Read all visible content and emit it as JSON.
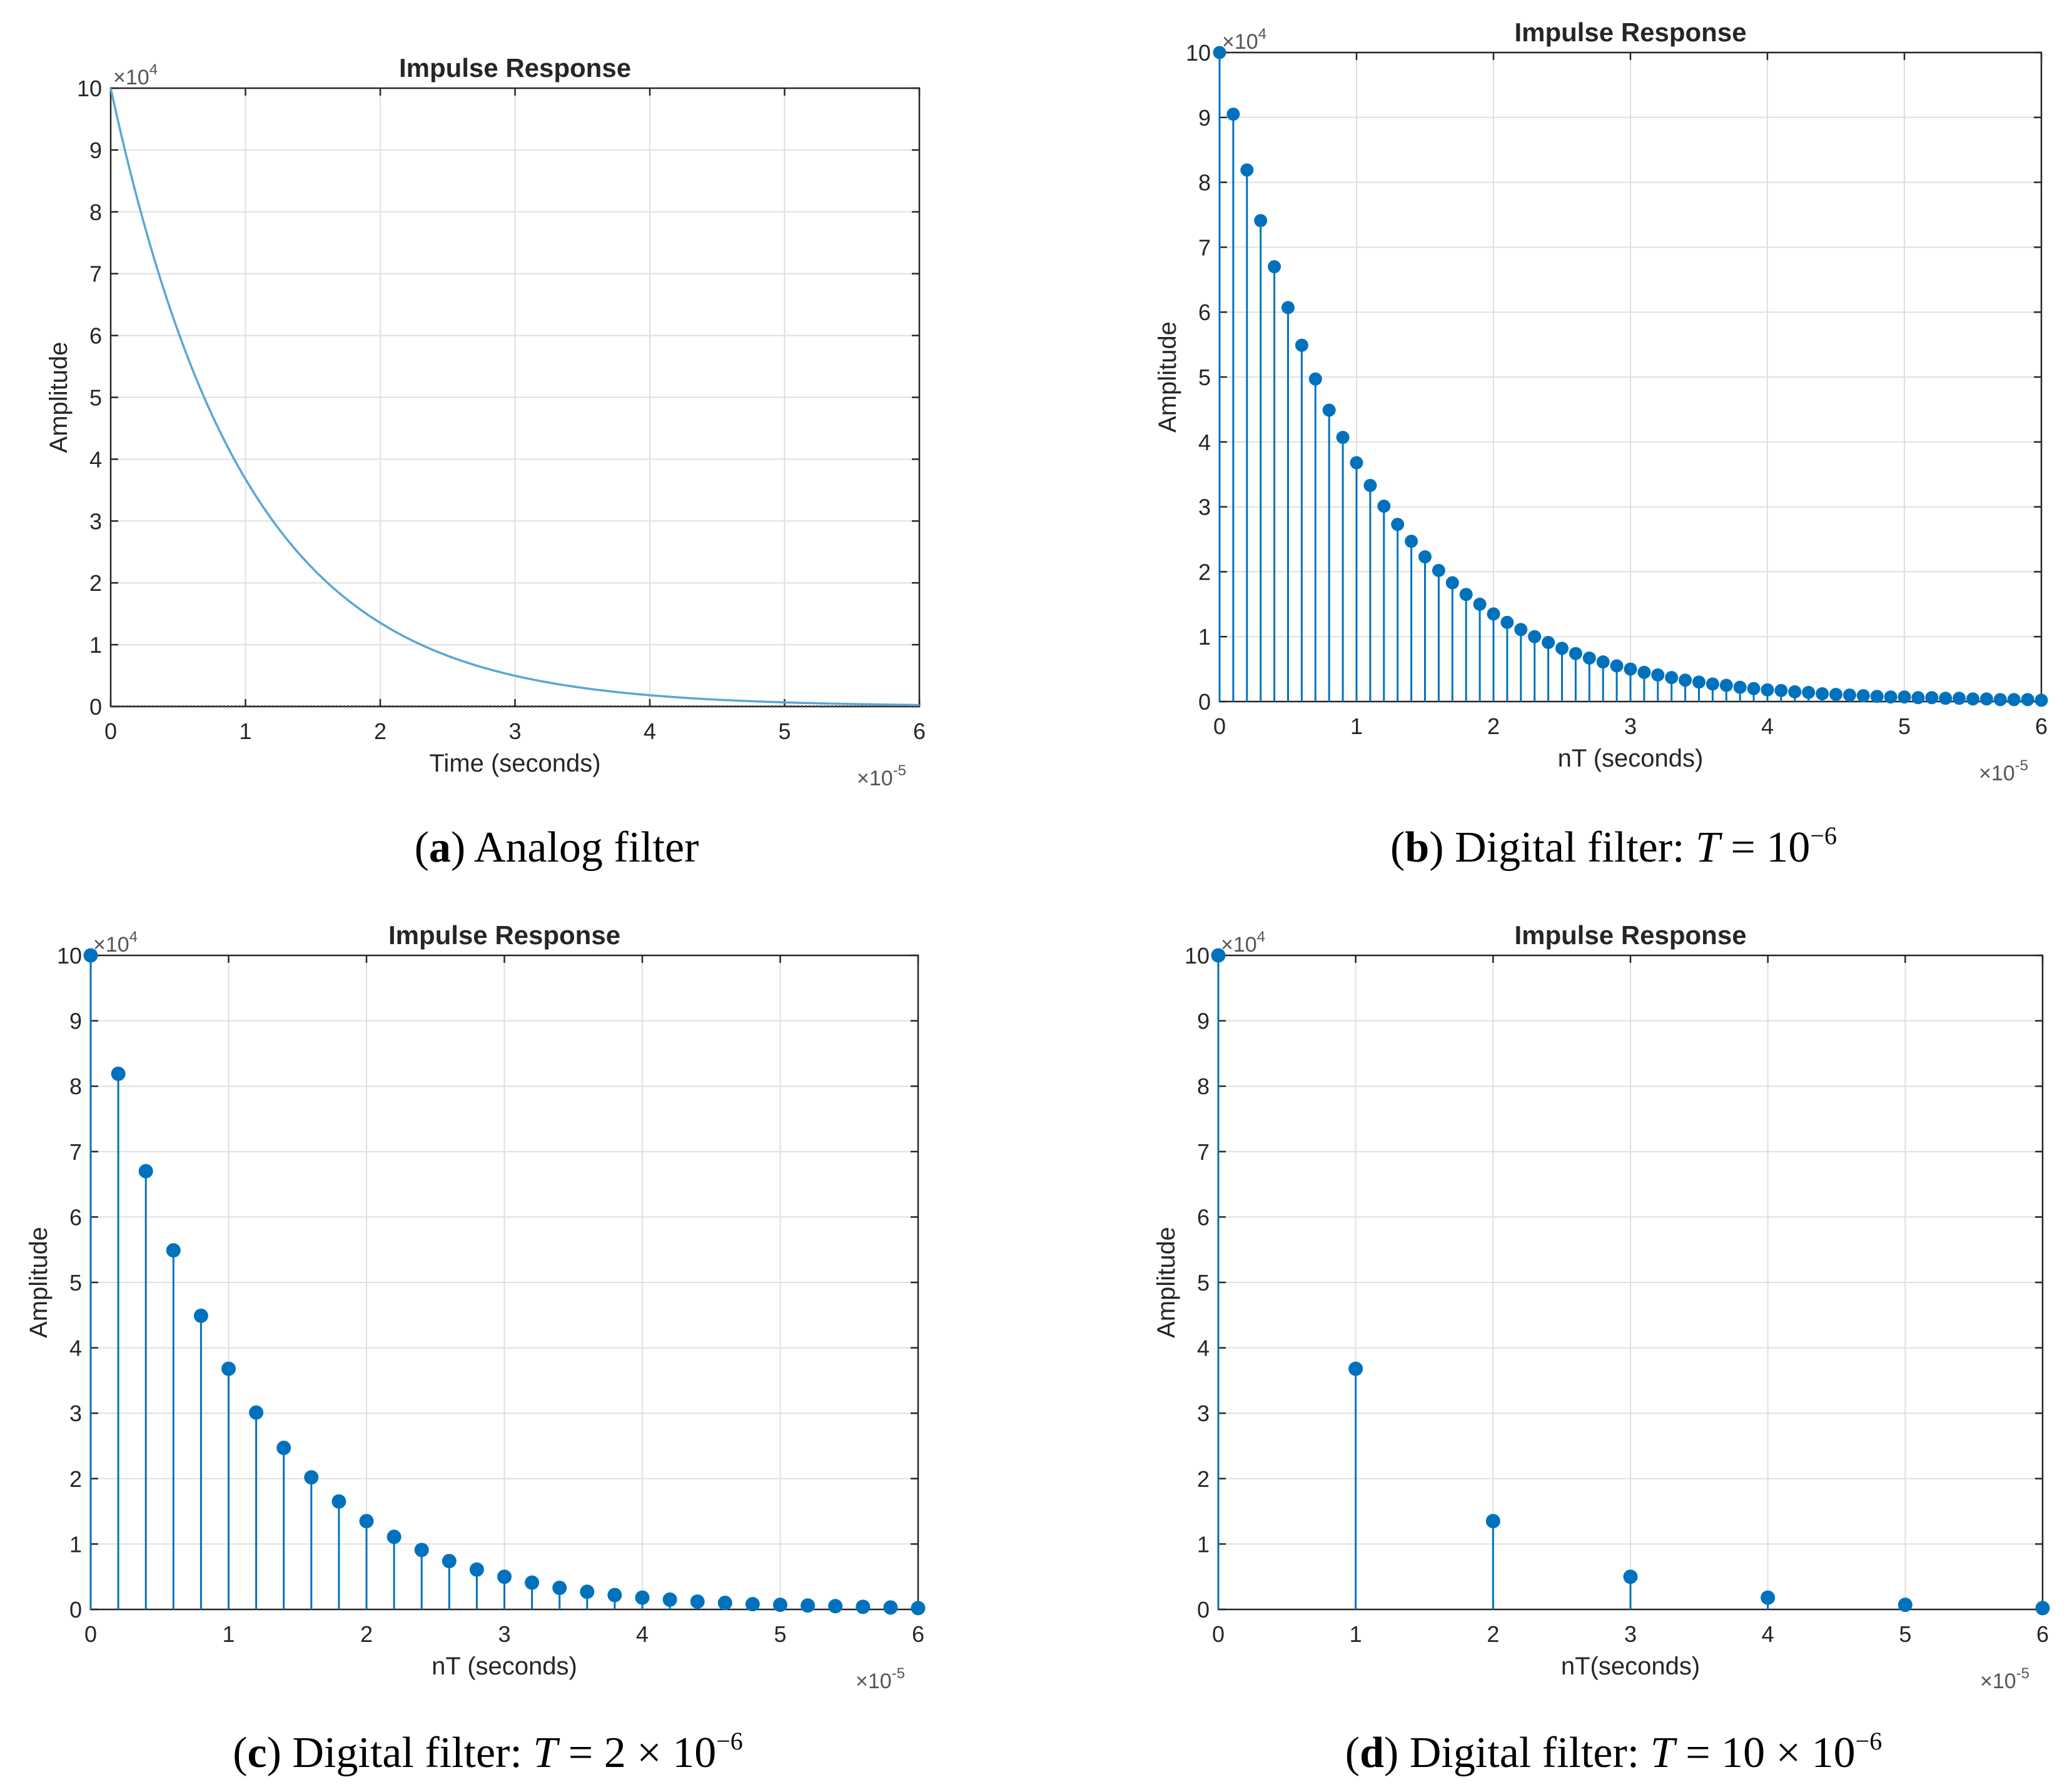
{
  "colors": {
    "analog_line": "#5aa6d6",
    "stem": "#0072bd",
    "marker": "#0072bd"
  },
  "chart_data": [
    {
      "type": "line",
      "panel_label": "a",
      "caption": "Analog filter",
      "title": "Impulse Response",
      "xlabel": "Time (seconds)",
      "ylabel": "Amplitude",
      "x_multiplier": "×10",
      "x_multiplier_exp": "-5",
      "y_multiplier": "×10",
      "y_multiplier_exp": "4",
      "xlim": [
        0,
        6
      ],
      "ylim": [
        0,
        10
      ],
      "x_ticks": [
        "0",
        "1",
        "2",
        "3",
        "4",
        "5",
        "6"
      ],
      "y_ticks": [
        "0",
        "1",
        "2",
        "3",
        "4",
        "5",
        "6",
        "7",
        "8",
        "9",
        "10"
      ],
      "function": "y = 10 * exp(-x)",
      "amplitude": 10,
      "decay_per_unit": 1
    },
    {
      "type": "stem",
      "panel_label": "b",
      "caption": "Digital filter: ",
      "caption_var": "T",
      "caption_rest": " = 10",
      "caption_exp": "−6",
      "title": "Impulse Response",
      "xlabel": "nT (seconds)",
      "ylabel": "Amplitude",
      "x_multiplier": "×10",
      "x_multiplier_exp": "-5",
      "y_multiplier": "×10",
      "y_multiplier_exp": "4",
      "xlim": [
        0,
        6
      ],
      "ylim": [
        0,
        10
      ],
      "x_ticks": [
        "0",
        "1",
        "2",
        "3",
        "4",
        "5",
        "6"
      ],
      "y_ticks": [
        "0",
        "1",
        "2",
        "3",
        "4",
        "5",
        "6",
        "7",
        "8",
        "9",
        "10"
      ],
      "sample_step": 0.1,
      "x": [
        0.0,
        0.1,
        0.2,
        0.3,
        0.4,
        0.5,
        0.6,
        0.7,
        0.8,
        0.9,
        1.0,
        1.1,
        1.2,
        1.3,
        1.4,
        1.5,
        1.6,
        1.7,
        1.8,
        1.9,
        2.0,
        2.1,
        2.2,
        2.3,
        2.4,
        2.5,
        2.6,
        2.7,
        2.8,
        2.9,
        3.0,
        3.1,
        3.2,
        3.3,
        3.4,
        3.5,
        3.6,
        3.7,
        3.8,
        3.9,
        4.0,
        4.1,
        4.2,
        4.3,
        4.4,
        4.5,
        4.6,
        4.7,
        4.8,
        4.9,
        5.0,
        5.1,
        5.2,
        5.3,
        5.4,
        5.5,
        5.6,
        5.7,
        5.8,
        5.9,
        6.0
      ],
      "values": [
        10.0,
        9.05,
        8.19,
        7.41,
        6.7,
        6.07,
        5.49,
        4.97,
        4.49,
        4.07,
        3.68,
        3.33,
        3.01,
        2.73,
        2.47,
        2.23,
        2.02,
        1.83,
        1.65,
        1.5,
        1.35,
        1.22,
        1.11,
        1.0,
        0.91,
        0.82,
        0.74,
        0.67,
        0.61,
        0.55,
        0.5,
        0.45,
        0.41,
        0.37,
        0.33,
        0.3,
        0.27,
        0.25,
        0.22,
        0.2,
        0.18,
        0.17,
        0.15,
        0.14,
        0.12,
        0.11,
        0.1,
        0.09,
        0.08,
        0.07,
        0.07,
        0.06,
        0.06,
        0.05,
        0.05,
        0.04,
        0.04,
        0.03,
        0.03,
        0.03,
        0.02
      ]
    },
    {
      "type": "stem",
      "panel_label": "c",
      "caption": "Digital filter: ",
      "caption_var": "T",
      "caption_rest": " = 2 × 10",
      "caption_exp": "−6",
      "title": "Impulse Response",
      "xlabel": "nT (seconds)",
      "ylabel": "Amplitude",
      "x_multiplier": "×10",
      "x_multiplier_exp": "-5",
      "y_multiplier": "×10",
      "y_multiplier_exp": "4",
      "xlim": [
        0,
        6
      ],
      "ylim": [
        0,
        10
      ],
      "x_ticks": [
        "0",
        "1",
        "2",
        "3",
        "4",
        "5",
        "6"
      ],
      "y_ticks": [
        "0",
        "1",
        "2",
        "3",
        "4",
        "5",
        "6",
        "7",
        "8",
        "9",
        "10"
      ],
      "sample_step": 0.2,
      "x": [
        0.0,
        0.2,
        0.4,
        0.6,
        0.8,
        1.0,
        1.2,
        1.4,
        1.6,
        1.8,
        2.0,
        2.2,
        2.4,
        2.6,
        2.8,
        3.0,
        3.2,
        3.4,
        3.6,
        3.8,
        4.0,
        4.2,
        4.4,
        4.6,
        4.8,
        5.0,
        5.2,
        5.4,
        5.6,
        5.8,
        6.0
      ],
      "values": [
        10.0,
        8.19,
        6.7,
        5.49,
        4.49,
        3.68,
        3.01,
        2.47,
        2.02,
        1.65,
        1.35,
        1.11,
        0.91,
        0.74,
        0.61,
        0.5,
        0.41,
        0.33,
        0.27,
        0.22,
        0.18,
        0.15,
        0.12,
        0.1,
        0.08,
        0.07,
        0.06,
        0.05,
        0.04,
        0.03,
        0.02
      ]
    },
    {
      "type": "stem",
      "panel_label": "d",
      "caption": "Digital filter: ",
      "caption_var": "T",
      "caption_rest": " = 10 × 10",
      "caption_exp": "−6",
      "title": "Impulse Response",
      "xlabel": "nT(seconds)",
      "ylabel": "Amplitude",
      "x_multiplier": "×10",
      "x_multiplier_exp": "-5",
      "y_multiplier": "×10",
      "y_multiplier_exp": "4",
      "xlim": [
        0,
        6
      ],
      "ylim": [
        0,
        10
      ],
      "x_ticks": [
        "0",
        "1",
        "2",
        "3",
        "4",
        "5",
        "6"
      ],
      "y_ticks": [
        "0",
        "1",
        "2",
        "3",
        "4",
        "5",
        "6",
        "7",
        "8",
        "9",
        "10"
      ],
      "sample_step": 1,
      "x": [
        0,
        1,
        2,
        3,
        4,
        5,
        6
      ],
      "values": [
        10.0,
        3.68,
        1.35,
        0.5,
        0.18,
        0.07,
        0.02
      ]
    }
  ]
}
